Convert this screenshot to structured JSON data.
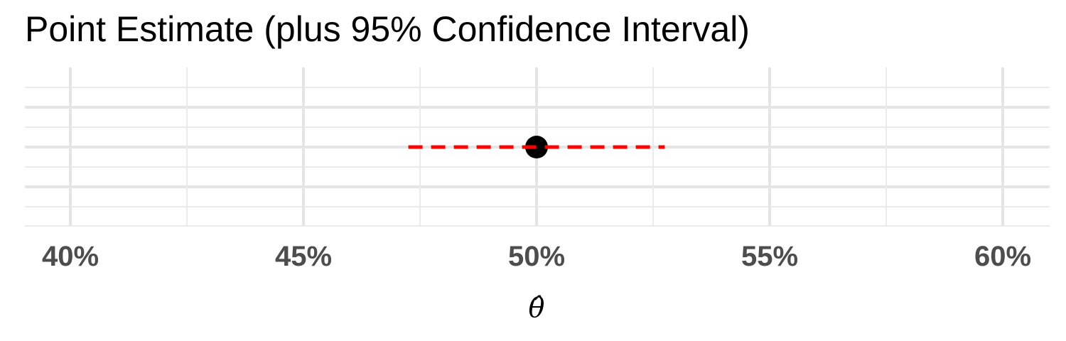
{
  "chart_data": {
    "type": "scatter",
    "title": "Point Estimate (plus 95% Confidence Interval)",
    "xlabel": "θ̂",
    "ylabel": "",
    "xlim": [
      0.39,
      0.61
    ],
    "x_ticks": [
      0.4,
      0.45,
      0.5,
      0.55,
      0.6
    ],
    "x_tick_labels": [
      "40%",
      "45%",
      "50%",
      "55%",
      "60%"
    ],
    "grid": true,
    "point": {
      "x": 0.5
    },
    "interval": {
      "lower": 0.4725,
      "upper": 0.5275,
      "level": 0.95,
      "style": "dashed",
      "color": "#ff0000"
    },
    "point_color": "#000000"
  }
}
